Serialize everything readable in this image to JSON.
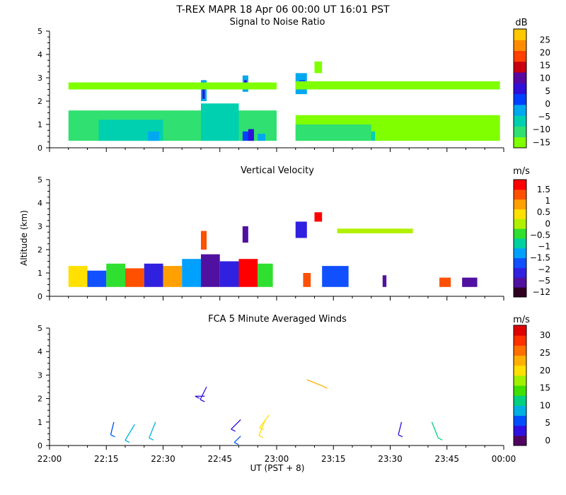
{
  "header": {
    "title": "T-REX  MAPR 18 Apr 06   00:00 UT   16:01   PST"
  },
  "x_axis": {
    "label": "UT  (PST + 8)",
    "tick_labels": [
      "22:00",
      "22:15",
      "22:30",
      "22:45",
      "23:00",
      "23:15",
      "23:30",
      "23:45",
      "00:00"
    ]
  },
  "colors": {
    "snr": [
      "#80ff00",
      "#30e070",
      "#00d0b0",
      "#00a8f0",
      "#0040ff",
      "#3010d8",
      "#5808a0",
      "#c80010",
      "#ff4000",
      "#ff8c00",
      "#ffc800"
    ],
    "vv": [
      "#300020",
      "#5010a0",
      "#3020e0",
      "#1050ff",
      "#00a0ff",
      "#00d0a0",
      "#30e030",
      "#b0f000",
      "#ffe000",
      "#ffa000",
      "#ff5000",
      "#ff0000"
    ],
    "wind": [
      "#500060",
      "#3010e0",
      "#0050ff",
      "#00b0e0",
      "#00d080",
      "#40e000",
      "#a0f000",
      "#ffe000",
      "#ffb000",
      "#ff7000",
      "#ff3000",
      "#e00000"
    ]
  },
  "chart_data": [
    {
      "type": "heatmap",
      "title": "Signal to Noise Ratio",
      "xlabel": "",
      "ylabel": "",
      "xlim": [
        0,
        120
      ],
      "ylim": [
        0,
        5
      ],
      "x_units": "minutes after 22:00 UT",
      "yticks": [
        "0",
        "1",
        "2",
        "3",
        "4",
        "5"
      ],
      "colorbar": {
        "unit": "dB",
        "tick_labels": [
          "25",
          "20",
          "15",
          "10",
          "5",
          "0",
          "−5",
          "−10",
          "−15"
        ]
      },
      "regions": [
        {
          "x0": 5,
          "x1": 60,
          "y0": 0.3,
          "y1": 1.6,
          "level": 1
        },
        {
          "x0": 13,
          "x1": 30,
          "y0": 0.3,
          "y1": 1.2,
          "level": 2
        },
        {
          "x0": 26,
          "x1": 29,
          "y0": 0.3,
          "y1": 0.7,
          "level": 3
        },
        {
          "x0": 40,
          "x1": 50,
          "y0": 0.3,
          "y1": 1.9,
          "level": 2
        },
        {
          "x0": 51,
          "x1": 54,
          "y0": 0.3,
          "y1": 0.7,
          "level": 4
        },
        {
          "x0": 52.5,
          "x1": 54,
          "y0": 0.3,
          "y1": 0.8,
          "level": 5
        },
        {
          "x0": 55,
          "x1": 57,
          "y0": 0.3,
          "y1": 0.6,
          "level": 3
        },
        {
          "x0": 40,
          "x1": 41.5,
          "y0": 2.0,
          "y1": 2.9,
          "level": 3
        },
        {
          "x0": 40.4,
          "x1": 41,
          "y0": 2.1,
          "y1": 2.8,
          "level": 5
        },
        {
          "x0": 51,
          "x1": 52.5,
          "y0": 2.4,
          "y1": 3.1,
          "level": 3
        },
        {
          "x0": 51.4,
          "x1": 52.1,
          "y0": 2.5,
          "y1": 2.9,
          "level": 5
        },
        {
          "x0": 5,
          "x1": 60,
          "y0": 2.5,
          "y1": 2.8,
          "level": 0
        },
        {
          "x0": 65,
          "x1": 119,
          "y0": 0.3,
          "y1": 1.4,
          "level": 0
        },
        {
          "x0": 65,
          "x1": 85,
          "y0": 0.3,
          "y1": 1.0,
          "level": 1
        },
        {
          "x0": 65,
          "x1": 68,
          "y0": 2.3,
          "y1": 3.2,
          "level": 3
        },
        {
          "x0": 66,
          "x1": 67.5,
          "y0": 2.6,
          "y1": 2.9,
          "level": 4
        },
        {
          "x0": 65,
          "x1": 119,
          "y0": 2.5,
          "y1": 2.85,
          "level": 0
        },
        {
          "x0": 70,
          "x1": 72,
          "y0": 3.2,
          "y1": 3.7,
          "level": 0
        },
        {
          "x0": 85,
          "x1": 86,
          "y0": 0.3,
          "y1": 0.7,
          "level": 2
        }
      ]
    },
    {
      "type": "heatmap",
      "title": "Vertical Velocity",
      "xlabel": "",
      "ylabel": "Altitude (km)",
      "xlim": [
        0,
        120
      ],
      "ylim": [
        0,
        5
      ],
      "x_units": "minutes after 22:00 UT",
      "yticks": [
        "0",
        "1",
        "2",
        "3",
        "4",
        "5"
      ],
      "colorbar": {
        "unit": "m/s",
        "tick_labels": [
          "1.5",
          "1",
          "0.5",
          "0",
          "−0.5",
          "−1",
          "−1.5",
          "−2",
          "−5",
          "−12"
        ]
      },
      "regions": [
        {
          "x0": 5,
          "x1": 10,
          "y0": 0.4,
          "y1": 1.3,
          "level": 8
        },
        {
          "x0": 10,
          "x1": 15,
          "y0": 0.4,
          "y1": 1.1,
          "level": 3
        },
        {
          "x0": 15,
          "x1": 20,
          "y0": 0.4,
          "y1": 1.4,
          "level": 6
        },
        {
          "x0": 20,
          "x1": 25,
          "y0": 0.4,
          "y1": 1.2,
          "level": 10
        },
        {
          "x0": 25,
          "x1": 30,
          "y0": 0.4,
          "y1": 1.4,
          "level": 2
        },
        {
          "x0": 30,
          "x1": 35,
          "y0": 0.4,
          "y1": 1.3,
          "level": 9
        },
        {
          "x0": 35,
          "x1": 40,
          "y0": 0.4,
          "y1": 1.6,
          "level": 4
        },
        {
          "x0": 40,
          "x1": 45,
          "y0": 0.4,
          "y1": 1.8,
          "level": 1
        },
        {
          "x0": 45,
          "x1": 50,
          "y0": 0.4,
          "y1": 1.5,
          "level": 2
        },
        {
          "x0": 50,
          "x1": 55,
          "y0": 0.4,
          "y1": 1.6,
          "level": 11
        },
        {
          "x0": 55,
          "x1": 59,
          "y0": 0.4,
          "y1": 1.4,
          "level": 6
        },
        {
          "x0": 40,
          "x1": 41.5,
          "y0": 2.0,
          "y1": 2.8,
          "level": 10
        },
        {
          "x0": 51,
          "x1": 52.5,
          "y0": 2.3,
          "y1": 3.0,
          "level": 1
        },
        {
          "x0": 65,
          "x1": 68,
          "y0": 2.5,
          "y1": 3.2,
          "level": 2
        },
        {
          "x0": 67,
          "x1": 69,
          "y0": 0.4,
          "y1": 1.0,
          "level": 10
        },
        {
          "x0": 70,
          "x1": 72,
          "y0": 3.2,
          "y1": 3.6,
          "level": 11
        },
        {
          "x0": 72,
          "x1": 79,
          "y0": 0.4,
          "y1": 1.3,
          "level": 3
        },
        {
          "x0": 76,
          "x1": 96,
          "y0": 2.7,
          "y1": 2.9,
          "level": 7
        },
        {
          "x0": 88,
          "x1": 89,
          "y0": 0.4,
          "y1": 0.9,
          "level": 1
        },
        {
          "x0": 103,
          "x1": 106,
          "y0": 0.4,
          "y1": 0.8,
          "level": 10
        },
        {
          "x0": 109,
          "x1": 113,
          "y0": 0.4,
          "y1": 0.8,
          "level": 1
        }
      ]
    },
    {
      "type": "scatter",
      "title": "FCA 5 Minute Averaged Winds",
      "xlabel": "UT  (PST + 8)",
      "ylabel": "",
      "xlim": [
        0,
        120
      ],
      "ylim": [
        0,
        5
      ],
      "x_units": "minutes after 22:00 UT",
      "yticks": [
        "0",
        "1",
        "2",
        "3",
        "4",
        "5"
      ],
      "colorbar": {
        "unit": "m/s",
        "tick_labels": [
          "30",
          "25",
          "20",
          "15",
          "10",
          "5",
          "0"
        ]
      },
      "points": [
        {
          "x": 17,
          "y": 1.0,
          "u": -1,
          "v": -4,
          "speed": 5
        },
        {
          "x": 22.5,
          "y": 0.9,
          "u": -3,
          "v": -5,
          "speed": 9
        },
        {
          "x": 28,
          "y": 1.0,
          "u": -2,
          "v": -5,
          "speed": 9
        },
        {
          "x": 41.5,
          "y": 2.5,
          "u": -2,
          "v": -4,
          "speed": 3
        },
        {
          "x": 41,
          "y": 2.1,
          "u": -3,
          "v": 0,
          "speed": 3
        },
        {
          "x": 50.5,
          "y": 1.1,
          "u": -3,
          "v": -3,
          "speed": 4
        },
        {
          "x": 50.5,
          "y": 0.4,
          "u": -2,
          "v": -2,
          "speed": 5
        },
        {
          "x": 57,
          "y": 1.1,
          "u": -2,
          "v": -5,
          "speed": 19
        },
        {
          "x": 58,
          "y": 1.3,
          "u": -3,
          "v": -4,
          "speed": 19
        },
        {
          "x": 68,
          "y": 2.8,
          "u": 5,
          "v": -2,
          "speed": 20
        },
        {
          "x": 93,
          "y": 1.0,
          "u": -1,
          "v": -4,
          "speed": 4
        },
        {
          "x": 101,
          "y": 1.0,
          "u": 2,
          "v": -5,
          "speed": 10
        }
      ]
    }
  ]
}
